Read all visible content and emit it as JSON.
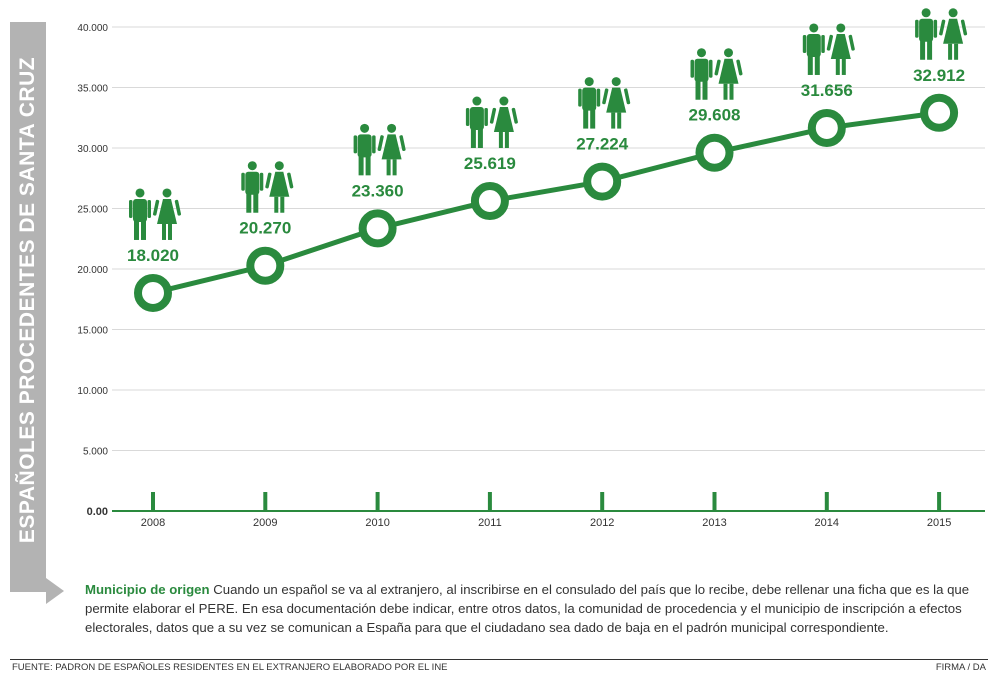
{
  "side_label": "ESPAÑOLES PROCEDENTES DE SANTA CRUZ",
  "note": {
    "title": "Municipio de origen",
    "text": "Cuando un español se va al extranjero, al inscribirse en el consulado del país que lo recibe, debe rellenar una ficha que es la que permite elaborar el PERE. En esa documentación debe indicar, entre otros datos, la comunidad de procedencia y el municipio de inscripción a efectos electorales, datos que a su vez se comunican a España para que el ciudadano sea dado de baja en el padrón municipal correspondiente."
  },
  "footer": {
    "source": "FUENTE: PADRON DE ESPAÑOLES RESIDENTES EN EL EXTRANJERO ELABORADO POR EL INE",
    "credit": "FIRMA / DA"
  },
  "colors": {
    "accent": "#2a8a3e",
    "grid": "#d9d9d9",
    "side_bar": "#b3b3b3"
  },
  "icons": [
    "man-icon",
    "woman-icon"
  ],
  "chart_data": {
    "type": "line",
    "x": [
      "2008",
      "2009",
      "2010",
      "2011",
      "2012",
      "2013",
      "2014",
      "2015"
    ],
    "values": [
      18020,
      20270,
      23360,
      25619,
      27224,
      29608,
      31656,
      32912
    ],
    "data_labels": [
      "18.020",
      "20.270",
      "23.360",
      "25.619",
      "27.224",
      "29.608",
      "31.656",
      "32.912"
    ],
    "y_ticks": [
      0,
      5000,
      10000,
      15000,
      20000,
      25000,
      30000,
      35000,
      40000
    ],
    "y_tick_labels": [
      "0.00",
      "5.000",
      "10.000",
      "15.000",
      "20.000",
      "25.000",
      "30.000",
      "35.000",
      "40.000"
    ],
    "ylim": [
      0,
      40000
    ],
    "ylabel": "ESPAÑOLES PROCEDENTES DE SANTA CRUZ",
    "grid": true,
    "legend": "none"
  }
}
